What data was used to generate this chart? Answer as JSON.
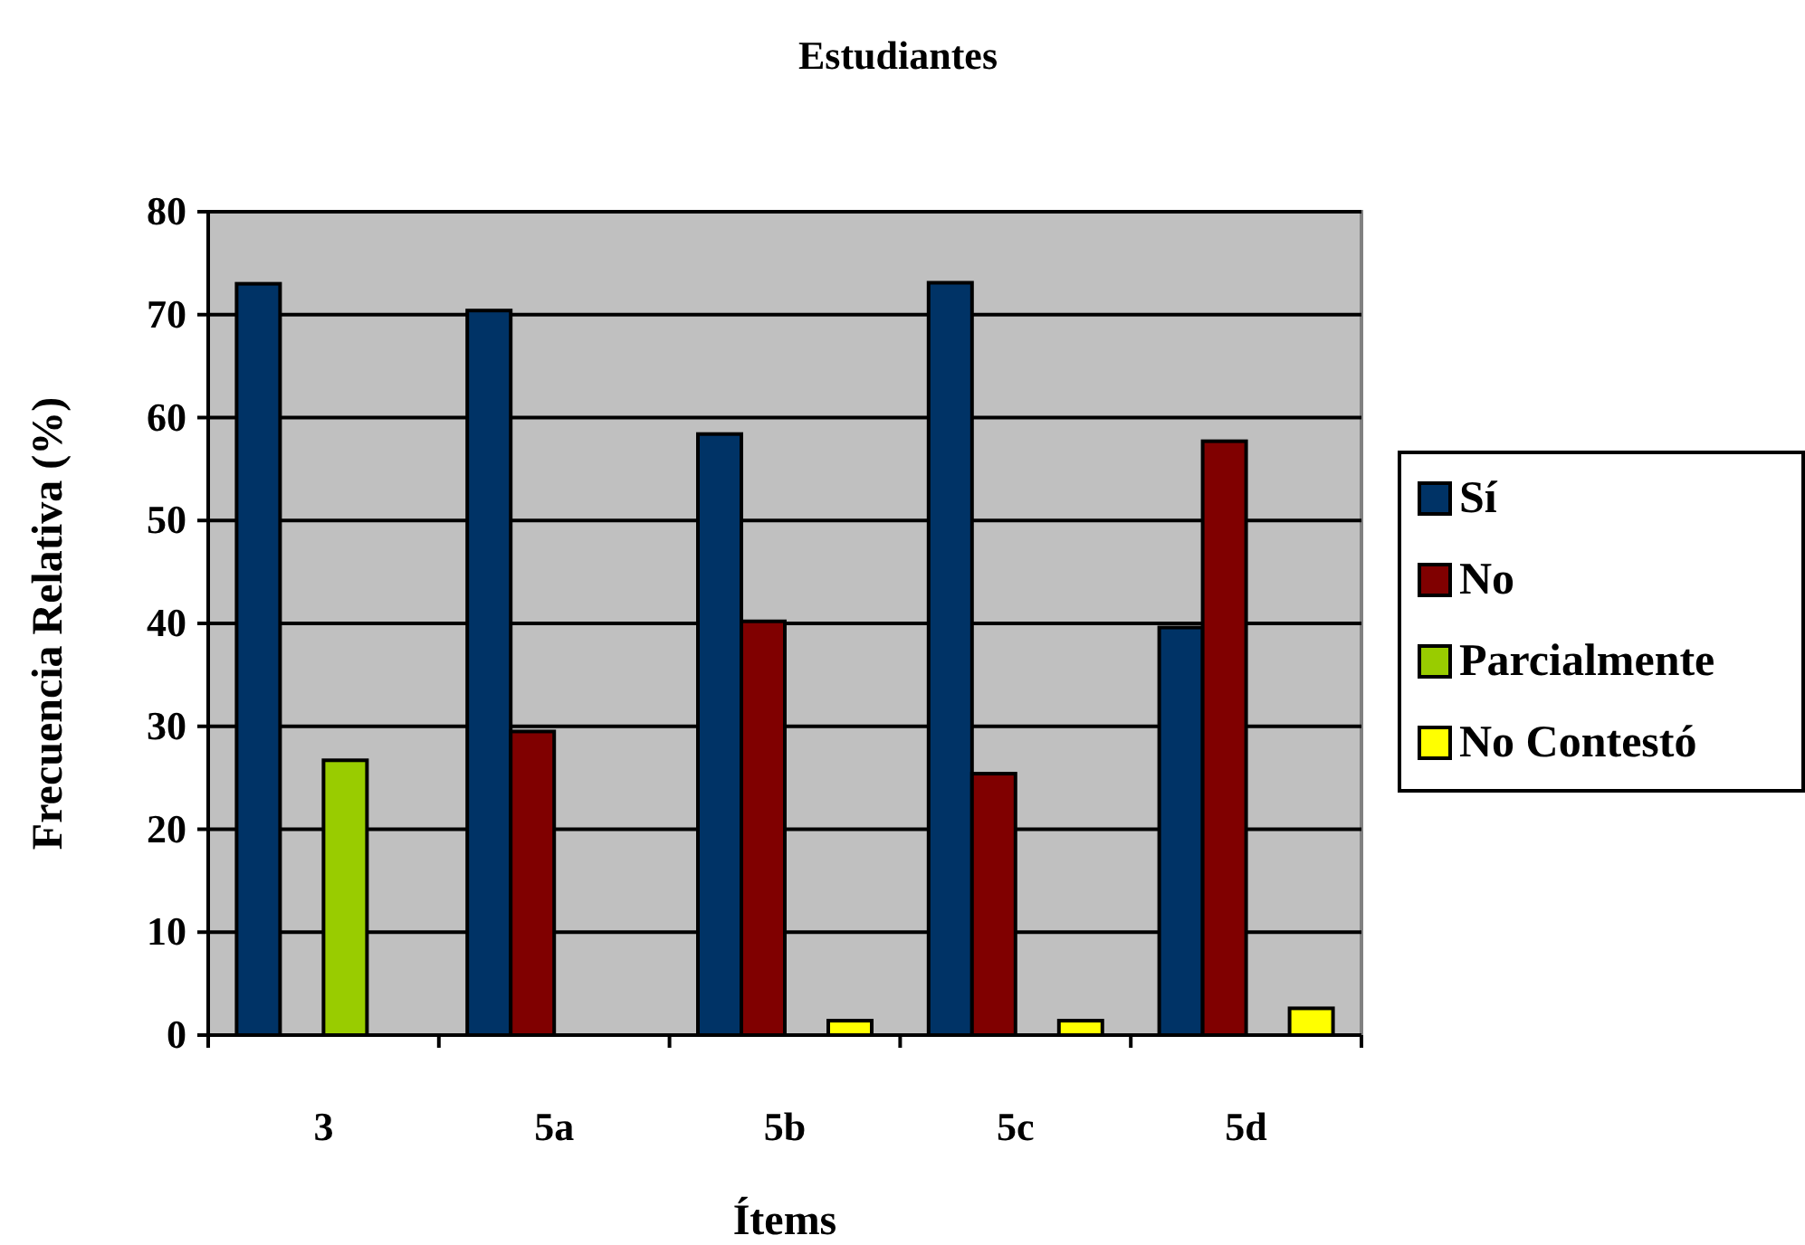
{
  "chart_data": {
    "type": "bar",
    "title": "Estudiantes",
    "xlabel": "Ítems",
    "ylabel": "Frecuencia Relativa (%)",
    "categories": [
      "3",
      "5a",
      "5b",
      "5c",
      "5d"
    ],
    "series": [
      {
        "name": "Sí",
        "color": "#003366",
        "values": [
          73.0,
          70.4,
          58.4,
          73.1,
          39.6
        ]
      },
      {
        "name": "No",
        "color": "#800000",
        "values": [
          null,
          29.5,
          40.2,
          25.4,
          57.7
        ]
      },
      {
        "name": "Parcialmente",
        "color": "#99cc00",
        "values": [
          26.7,
          null,
          null,
          null,
          null
        ]
      },
      {
        "name": "No Contestó",
        "color": "#ffff00",
        "values": [
          null,
          null,
          1.4,
          1.4,
          2.6
        ]
      }
    ],
    "ylim": [
      0,
      80
    ],
    "yticks": [
      0,
      10,
      20,
      30,
      40,
      50,
      60,
      70,
      80
    ],
    "grid": "y",
    "legend": "right"
  }
}
